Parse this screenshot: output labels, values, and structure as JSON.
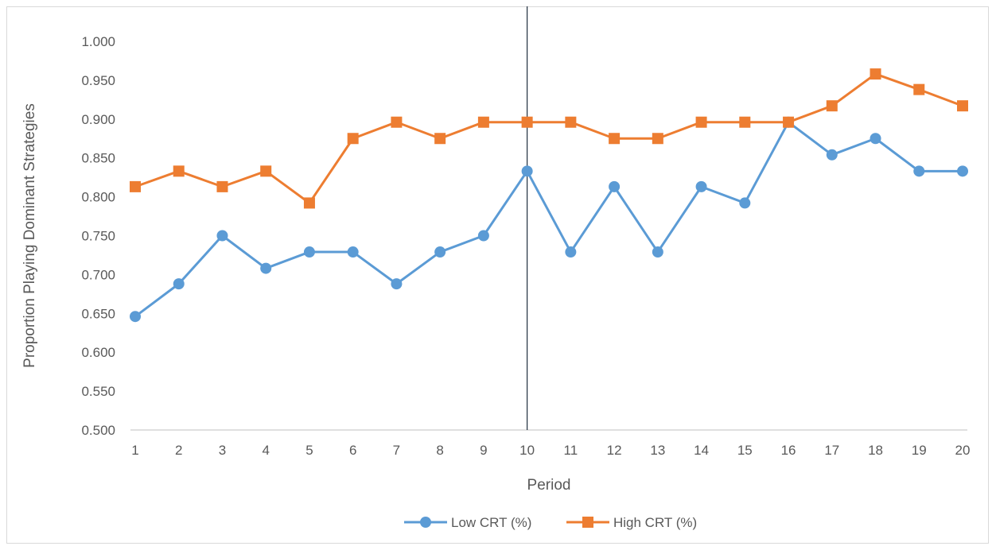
{
  "chart_data": {
    "type": "line",
    "xlabel": "Period",
    "ylabel": "Proportion  Playing  Dominant Strategies",
    "ylim": [
      0.5,
      1.0
    ],
    "y_ticks": [
      "0.500",
      "0.550",
      "0.600",
      "0.650",
      "0.700",
      "0.750",
      "0.800",
      "0.850",
      "0.900",
      "0.950",
      "1.000"
    ],
    "x": [
      1,
      2,
      3,
      4,
      5,
      6,
      7,
      8,
      9,
      10,
      11,
      12,
      13,
      14,
      15,
      16,
      17,
      18,
      19,
      20
    ],
    "grid": false,
    "legend_position": "bottom",
    "vertical_marker_x": 10,
    "series": [
      {
        "name": "Low CRT (%)",
        "color": "#5B9BD5",
        "marker": "circle",
        "values": [
          0.646,
          0.688,
          0.75,
          0.708,
          0.729,
          0.729,
          0.688,
          0.729,
          0.75,
          0.833,
          0.729,
          0.813,
          0.729,
          0.813,
          0.792,
          0.896,
          0.854,
          0.875,
          0.833,
          0.833
        ]
      },
      {
        "name": "High CRT (%)",
        "color": "#ED7D31",
        "marker": "square",
        "values": [
          0.813,
          0.833,
          0.813,
          0.833,
          0.792,
          0.875,
          0.896,
          0.875,
          0.896,
          0.896,
          0.896,
          0.875,
          0.875,
          0.896,
          0.896,
          0.896,
          0.917,
          0.958,
          0.938,
          0.917
        ]
      }
    ]
  }
}
